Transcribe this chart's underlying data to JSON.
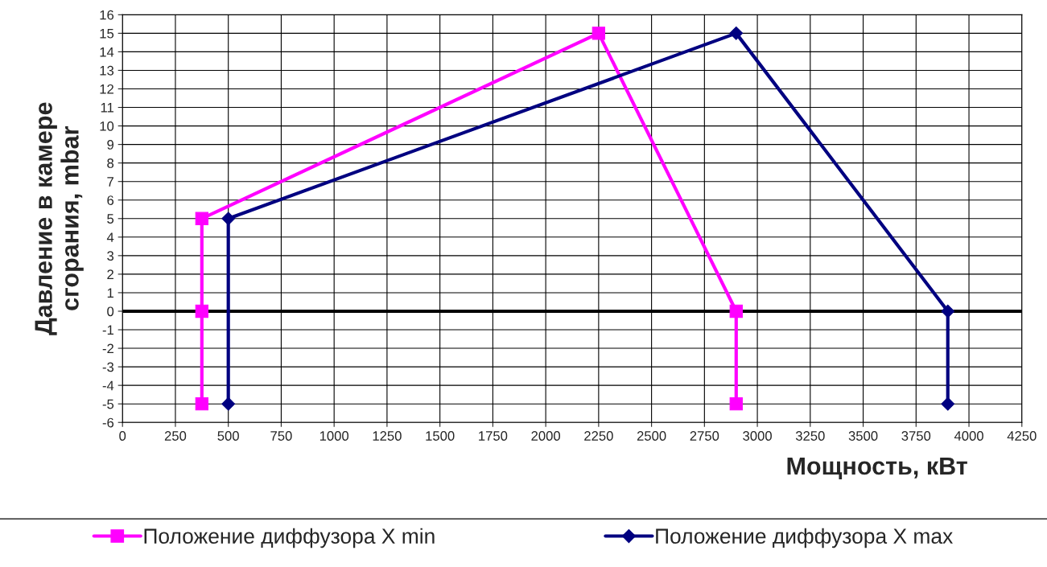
{
  "chart_data": {
    "type": "line",
    "xlabel": "Мощность, кВт",
    "ylabel": "Давление в камере\nсгорания, mbar",
    "xlim": [
      0,
      4250
    ],
    "xticks": [
      0,
      250,
      500,
      750,
      1000,
      1250,
      1500,
      1750,
      2000,
      2250,
      2500,
      2750,
      3000,
      3250,
      3500,
      3750,
      4000,
      4250
    ],
    "ylim": [
      -6,
      16
    ],
    "yticks": [
      -6,
      -5,
      -4,
      -3,
      -2,
      -1,
      0,
      1,
      2,
      3,
      4,
      5,
      6,
      7,
      8,
      9,
      10,
      11,
      12,
      13,
      14,
      15,
      16
    ],
    "grid": true,
    "legend": "bottom",
    "line_style": "solid",
    "ref_lines": [
      {
        "axis": "y",
        "value": 0,
        "color": "#000000"
      }
    ],
    "series": [
      {
        "name": "Положение диффузора X min",
        "color": "#ff00ff",
        "marker": "square",
        "x": [
          375,
          375,
          375,
          2250,
          2900,
          2900
        ],
        "values": [
          -5,
          0,
          5,
          15,
          0,
          -5
        ]
      },
      {
        "name": "Положение диффузора X max",
        "color": "#000080",
        "marker": "diamond",
        "x": [
          500,
          500,
          2900,
          3900,
          3900
        ],
        "values": [
          -5,
          5,
          15,
          0,
          -5
        ]
      }
    ]
  }
}
